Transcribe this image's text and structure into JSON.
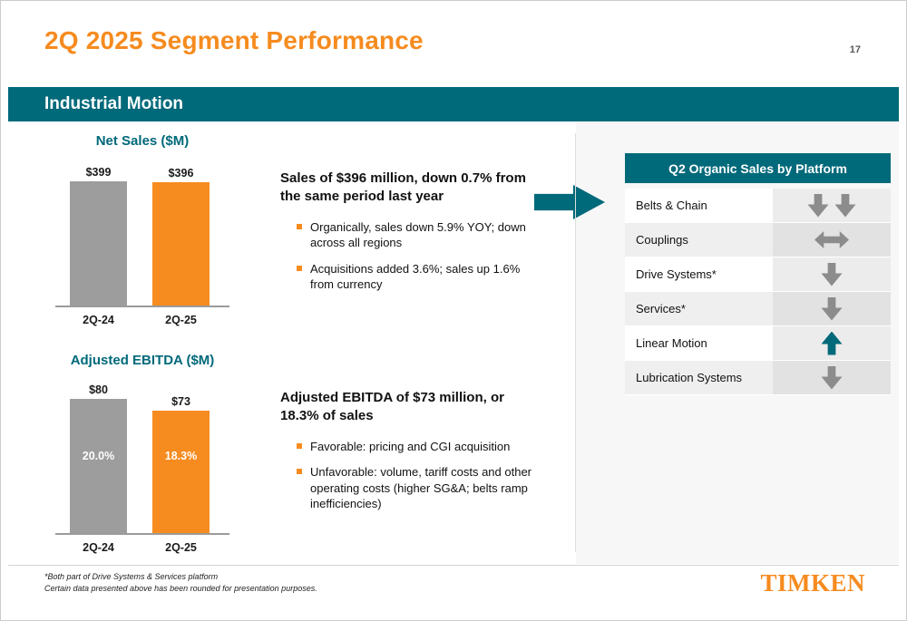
{
  "header": {
    "title": "2Q 2025 Segment Performance",
    "page_number": "17",
    "section": "Industrial Motion"
  },
  "colors": {
    "orange": "#F68B1F",
    "teal": "#00697A",
    "bar_gray": "#9D9D9D",
    "arrow_gray": "#8C8C8C"
  },
  "chart_data": [
    {
      "type": "bar",
      "title": "Net Sales ($M)",
      "categories": [
        "2Q-24",
        "2Q-25"
      ],
      "values": [
        399,
        396
      ],
      "value_labels": [
        "$399",
        "$396"
      ],
      "bar_colors": [
        "gray",
        "orange"
      ],
      "ylim": [
        0,
        399
      ]
    },
    {
      "type": "bar",
      "title": "Adjusted EBITDA ($M)",
      "categories": [
        "2Q-24",
        "2Q-25"
      ],
      "values": [
        80,
        73
      ],
      "value_labels": [
        "$80",
        "$73"
      ],
      "inner_labels": [
        "20.0%",
        "18.3%"
      ],
      "bar_colors": [
        "gray",
        "orange"
      ],
      "ylim": [
        0,
        80
      ]
    }
  ],
  "sales_block": {
    "heading": "Sales of $396 million, down 0.7% from the same period last year",
    "bullets": [
      "Organically, sales down 5.9% YOY; down across all regions",
      "Acquisitions added 3.6%; sales up 1.6% from currency"
    ]
  },
  "ebitda_block": {
    "heading": "Adjusted EBITDA of $73 million, or 18.3% of sales",
    "bullets": [
      "Favorable: pricing and CGI acquisition",
      "Unfavorable: volume, tariff costs and other operating costs (higher SG&A; belts ramp inefficiencies)"
    ]
  },
  "platform_table": {
    "header": "Q2 Organic Sales by Platform",
    "rows": [
      {
        "label": "Belts & Chain",
        "trend": "double-down"
      },
      {
        "label": "Couplings",
        "trend": "flat"
      },
      {
        "label": "Drive Systems*",
        "trend": "down"
      },
      {
        "label": "Services*",
        "trend": "down"
      },
      {
        "label": "Linear Motion",
        "trend": "up"
      },
      {
        "label": "Lubrication Systems",
        "trend": "down"
      }
    ]
  },
  "footer": {
    "footnotes": [
      "*Both part of Drive Systems & Services platform",
      "Certain data presented above has been rounded for presentation purposes."
    ],
    "logo": "TIMKEN"
  }
}
